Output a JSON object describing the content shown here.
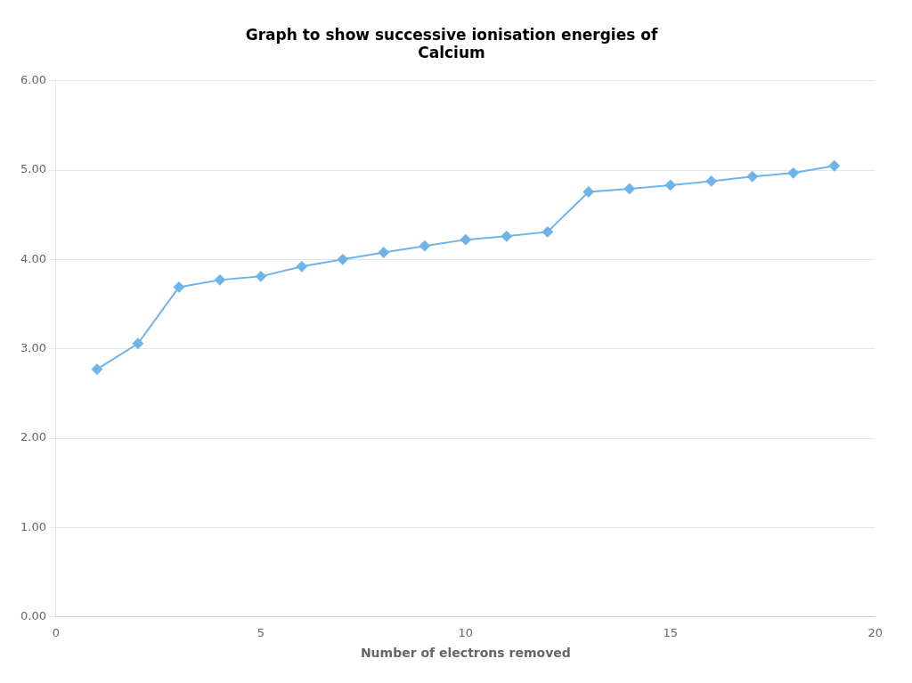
{
  "chart_data": {
    "type": "line",
    "title": [
      "Graph to show successive ionisation energies of",
      "Calcium"
    ],
    "xlabel": "Number of electrons removed",
    "x": [
      1,
      2,
      3,
      4,
      5,
      6,
      7,
      8,
      9,
      10,
      11,
      12,
      13,
      14,
      15,
      16,
      17,
      18,
      19
    ],
    "values": [
      2.771,
      3.059,
      3.691,
      3.771,
      3.811,
      3.921,
      4.001,
      4.079,
      4.152,
      4.222,
      4.26,
      4.309,
      4.757,
      4.792,
      4.832,
      4.877,
      4.929,
      4.968,
      5.048
    ],
    "color": "#6EB4E8",
    "marker": "diamond",
    "xlim": [
      0,
      20
    ],
    "xticks": [
      0,
      5,
      10,
      15,
      20
    ],
    "ylim": [
      0.0,
      6.0
    ],
    "yticks": [
      {
        "value": 0.0,
        "label": "0.00"
      },
      {
        "value": 1.0,
        "label": "1.00"
      },
      {
        "value": 2.0,
        "label": "2.00"
      },
      {
        "value": 3.0,
        "label": "3.00"
      },
      {
        "value": 4.0,
        "label": "4.00"
      },
      {
        "value": 5.0,
        "label": "5.00"
      },
      {
        "value": 6.0,
        "label": "6.00"
      }
    ],
    "grid": "y"
  }
}
